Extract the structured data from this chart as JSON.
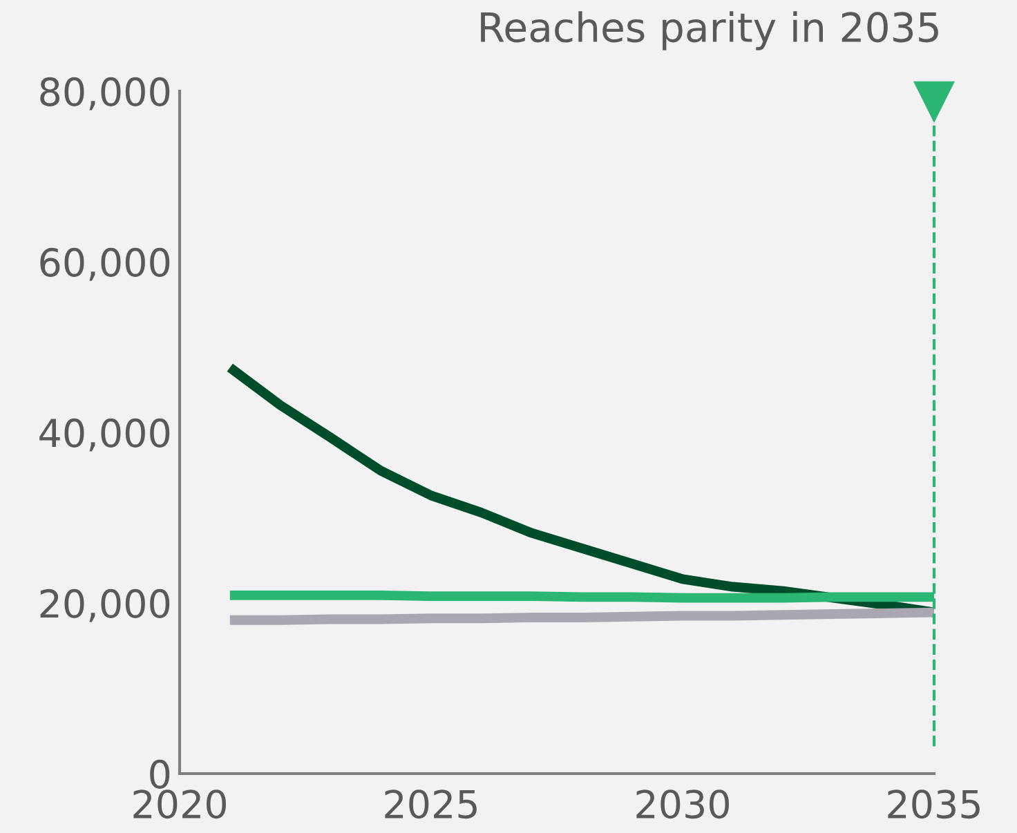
{
  "chart_data": {
    "type": "line",
    "x": [
      2021,
      2022,
      2023,
      2024,
      2025,
      2026,
      2027,
      2028,
      2029,
      2030,
      2031,
      2032,
      2033,
      2034,
      2035
    ],
    "series": [
      {
        "color": "#004d2c",
        "values": [
          47600,
          43200,
          39400,
          35500,
          32600,
          30600,
          28200,
          26400,
          24600,
          22800,
          21900,
          21400,
          20600,
          19800,
          18900
        ]
      },
      {
        "color": "#2bb673",
        "values": [
          20900,
          20900,
          20900,
          20900,
          20800,
          20800,
          20800,
          20700,
          20700,
          20600,
          20600,
          20600,
          20700,
          20700,
          20700
        ]
      },
      {
        "color": "#aaa6b2",
        "values": [
          18000,
          18000,
          18100,
          18100,
          18200,
          18200,
          18300,
          18300,
          18400,
          18500,
          18500,
          18600,
          18700,
          18800,
          18900
        ]
      }
    ],
    "xlim": [
      2020,
      2035
    ],
    "xticks": [
      2020,
      2025,
      2030,
      2035
    ],
    "ylim": [
      0,
      80000
    ],
    "yticks": [
      {
        "value": 0,
        "label": "0"
      },
      {
        "value": 20000,
        "label": "20,000"
      },
      {
        "value": 40000,
        "label": "40,000"
      },
      {
        "value": 60000,
        "label": "60,000"
      },
      {
        "value": 80000,
        "label": "80,000"
      }
    ],
    "ref_lines": [
      {
        "axis": "x",
        "value": 2035,
        "label": "Reaches parity in 2035",
        "color": "#2bb673",
        "line_style": "dashed"
      }
    ],
    "grid": false,
    "legend": false
  }
}
